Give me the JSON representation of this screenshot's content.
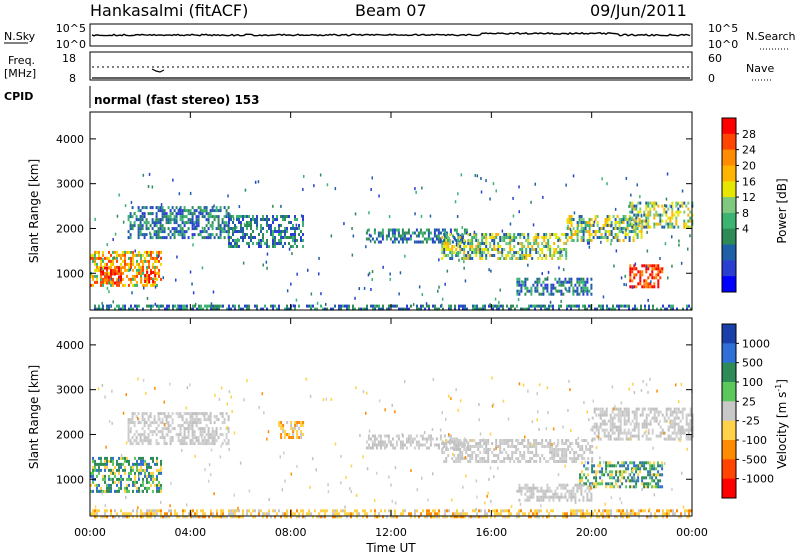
{
  "header": {
    "station": "Hankasalmi (fitACF)",
    "beam": "Beam 07",
    "date": "09/Jun/2011"
  },
  "panels": {
    "noise": {
      "left_label": "N.Sky",
      "right_label": "N.Search",
      "left_ticks": [
        "10^5",
        "10^0"
      ],
      "right_ticks": [
        "10^5",
        "10^0"
      ]
    },
    "freq": {
      "left_label_1": "Freq.",
      "left_label_2": "[MHz]",
      "left_ticks": [
        "18",
        "8"
      ],
      "right_label": "Nave",
      "right_ticks": [
        "60",
        "0"
      ]
    },
    "cpid": {
      "label": "CPID",
      "program": "normal (fast stereo) 153"
    }
  },
  "chart_data": [
    {
      "type": "heatmap",
      "quantity": "Power",
      "ylabel": "Slant Range [km]",
      "xlabel": "Time UT",
      "x_ticks": [
        "00:00",
        "04:00",
        "08:00",
        "12:00",
        "16:00",
        "20:00",
        "00:00"
      ],
      "y_ticks": [
        1000,
        2000,
        3000,
        4000
      ],
      "ylim": [
        180,
        4600
      ],
      "colorbar_label": "Power [dB]",
      "colorbar_ticks": [
        "28",
        "24",
        "20",
        "16",
        "12",
        "8",
        "4"
      ],
      "colorbar_colors": [
        "#ff0000",
        "#ff4500",
        "#ff8c00",
        "#ffb400",
        "#e6e600",
        "#7fc97f",
        "#3cb371",
        "#2e8b57",
        "#1e5fa8",
        "#2a3fd0",
        "#0000ff"
      ],
      "regions": [
        {
          "t0": 0.0,
          "t1": 2.8,
          "r0": 700,
          "r1": 1500,
          "level": "high"
        },
        {
          "t0": 0.4,
          "t1": 1.2,
          "r0": 750,
          "r1": 1150,
          "level": "peak"
        },
        {
          "t0": 2.0,
          "t1": 2.7,
          "r0": 800,
          "r1": 1050,
          "level": "peak"
        },
        {
          "t0": 1.5,
          "t1": 5.5,
          "r0": 1800,
          "r1": 2500,
          "level": "low"
        },
        {
          "t0": 5.5,
          "t1": 8.5,
          "r0": 1600,
          "r1": 2300,
          "level": "low"
        },
        {
          "t0": 11.0,
          "t1": 15.0,
          "r0": 1700,
          "r1": 2000,
          "level": "low"
        },
        {
          "t0": 14.0,
          "t1": 19.0,
          "r0": 1300,
          "r1": 1900,
          "level": "mid"
        },
        {
          "t0": 19.0,
          "t1": 22.0,
          "r0": 1700,
          "r1": 2300,
          "level": "mid"
        },
        {
          "t0": 21.5,
          "t1": 24.0,
          "r0": 2000,
          "r1": 2600,
          "level": "mid"
        },
        {
          "t0": 21.5,
          "t1": 22.8,
          "r0": 700,
          "r1": 1200,
          "level": "peak"
        },
        {
          "t0": 17.0,
          "t1": 20.0,
          "r0": 500,
          "r1": 900,
          "level": "low"
        },
        {
          "t0": 0.0,
          "t1": 24.0,
          "r0": 180,
          "r1": 300,
          "level": "low"
        }
      ]
    },
    {
      "type": "heatmap",
      "quantity": "Velocity",
      "ylabel": "Slant Range [km]",
      "xlabel": "Time UT",
      "x_ticks": [
        "00:00",
        "04:00",
        "08:00",
        "12:00",
        "16:00",
        "20:00",
        "00:00"
      ],
      "y_ticks": [
        1000,
        2000,
        3000,
        4000
      ],
      "ylim": [
        180,
        4600
      ],
      "colorbar_label": "Velocity [m s^-1]",
      "colorbar_ticks": [
        "1000",
        "500",
        "100",
        "25",
        "-25",
        "-100",
        "-500",
        "-1000"
      ],
      "colorbar_colors": [
        "#1a3fa8",
        "#2f6fd6",
        "#2e8b57",
        "#5cc85c",
        "#c8c8c8",
        "#ffd24a",
        "#ff8c00",
        "#ff4500",
        "#ff0000"
      ],
      "regions": [
        {
          "t0": 0.0,
          "t1": 2.8,
          "r0": 700,
          "r1": 1500,
          "level": "pos"
        },
        {
          "t0": 1.5,
          "t1": 5.5,
          "r0": 1800,
          "r1": 2500,
          "level": "gs"
        },
        {
          "t0": 7.5,
          "t1": 8.5,
          "r0": 1900,
          "r1": 2300,
          "level": "neg"
        },
        {
          "t0": 11.0,
          "t1": 15.0,
          "r0": 1700,
          "r1": 2000,
          "level": "gs"
        },
        {
          "t0": 14.0,
          "t1": 20.0,
          "r0": 1400,
          "r1": 1900,
          "level": "gs"
        },
        {
          "t0": 20.0,
          "t1": 24.0,
          "r0": 1900,
          "r1": 2600,
          "level": "gs"
        },
        {
          "t0": 19.5,
          "t1": 22.8,
          "r0": 800,
          "r1": 1400,
          "level": "pos"
        },
        {
          "t0": 17.0,
          "t1": 20.0,
          "r0": 500,
          "r1": 900,
          "level": "gs"
        },
        {
          "t0": 0.0,
          "t1": 24.0,
          "r0": 180,
          "r1": 330,
          "level": "neg"
        }
      ]
    }
  ]
}
